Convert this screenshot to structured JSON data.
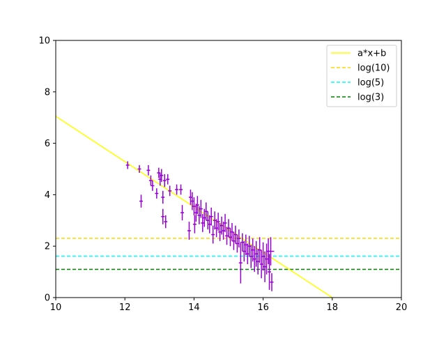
{
  "chart_data": {
    "type": "scatter",
    "title": "",
    "xlabel": "",
    "ylabel": "",
    "xlim": [
      10,
      20
    ],
    "ylim": [
      0,
      10
    ],
    "xticks": [
      "10",
      "12",
      "14",
      "16",
      "18",
      "20"
    ],
    "yticks": [
      "0",
      "2",
      "4",
      "6",
      "8",
      "10"
    ],
    "grid": false,
    "legend_position": "upper right",
    "fit_line": {
      "name": "a*x+b",
      "x": [
        10,
        18
      ],
      "y": [
        7.05,
        0.0
      ],
      "color": "#ffff00"
    },
    "hlines": [
      {
        "name": "log(10)",
        "y": 2.303,
        "color": "#ffd700",
        "style": "dashed"
      },
      {
        "name": "log(5)",
        "y": 1.609,
        "color": "#00ffff",
        "style": "dashed"
      },
      {
        "name": "log(3)",
        "y": 1.099,
        "color": "#008000",
        "style": "dashed"
      }
    ],
    "errorbar_series": {
      "color": "#9400d3",
      "points": [
        [
          12.08,
          5.15,
          0.05,
          0.15
        ],
        [
          12.42,
          5.0,
          0.05,
          0.15
        ],
        [
          12.47,
          3.75,
          0.05,
          0.25
        ],
        [
          12.68,
          4.95,
          0.05,
          0.2
        ],
        [
          12.75,
          4.55,
          0.05,
          0.2
        ],
        [
          12.8,
          4.35,
          0.05,
          0.2
        ],
        [
          12.92,
          4.05,
          0.05,
          0.2
        ],
        [
          12.98,
          4.85,
          0.05,
          0.2
        ],
        [
          13.02,
          4.6,
          0.05,
          0.25
        ],
        [
          13.06,
          4.75,
          0.05,
          0.25
        ],
        [
          13.1,
          3.9,
          0.05,
          0.25
        ],
        [
          13.1,
          3.15,
          0.05,
          0.3
        ],
        [
          13.15,
          4.55,
          0.05,
          0.25
        ],
        [
          13.18,
          2.95,
          0.05,
          0.25
        ],
        [
          13.24,
          4.6,
          0.05,
          0.2
        ],
        [
          13.3,
          4.15,
          0.05,
          0.2
        ],
        [
          13.5,
          4.2,
          0.05,
          0.2
        ],
        [
          13.62,
          4.2,
          0.05,
          0.2
        ],
        [
          13.66,
          3.3,
          0.05,
          0.3
        ],
        [
          13.86,
          2.6,
          0.05,
          0.35
        ],
        [
          13.9,
          3.9,
          0.05,
          0.3
        ],
        [
          13.95,
          3.75,
          0.05,
          0.35
        ],
        [
          14.0,
          3.55,
          0.05,
          0.35
        ],
        [
          14.02,
          2.85,
          0.05,
          0.35
        ],
        [
          14.06,
          3.3,
          0.05,
          0.35
        ],
        [
          14.1,
          3.6,
          0.05,
          0.35
        ],
        [
          14.15,
          3.2,
          0.05,
          0.35
        ],
        [
          14.2,
          3.45,
          0.05,
          0.35
        ],
        [
          14.25,
          2.9,
          0.05,
          0.35
        ],
        [
          14.3,
          3.1,
          0.05,
          0.35
        ],
        [
          14.35,
          3.35,
          0.05,
          0.35
        ],
        [
          14.4,
          3.0,
          0.05,
          0.35
        ],
        [
          14.45,
          2.85,
          0.05,
          0.35
        ],
        [
          14.5,
          3.15,
          0.05,
          0.35
        ],
        [
          14.55,
          2.45,
          0.05,
          0.35
        ],
        [
          14.6,
          3.0,
          0.05,
          0.35
        ],
        [
          14.65,
          2.7,
          0.05,
          0.35
        ],
        [
          14.7,
          2.95,
          0.05,
          0.35
        ],
        [
          14.75,
          2.55,
          0.05,
          0.35
        ],
        [
          14.8,
          2.8,
          0.05,
          0.35
        ],
        [
          14.85,
          2.6,
          0.05,
          0.35
        ],
        [
          14.9,
          2.9,
          0.05,
          0.35
        ],
        [
          14.95,
          2.4,
          0.05,
          0.35
        ],
        [
          15.0,
          2.7,
          0.05,
          0.35
        ],
        [
          15.05,
          2.35,
          0.05,
          0.35
        ],
        [
          15.1,
          2.55,
          0.05,
          0.35
        ],
        [
          15.15,
          2.2,
          0.05,
          0.35
        ],
        [
          15.2,
          2.45,
          0.05,
          0.35
        ],
        [
          15.25,
          2.1,
          0.05,
          0.35
        ],
        [
          15.3,
          2.3,
          0.05,
          0.35
        ],
        [
          15.35,
          1.35,
          0.05,
          0.8
        ],
        [
          15.4,
          2.15,
          0.05,
          0.35
        ],
        [
          15.45,
          1.8,
          0.05,
          0.4
        ],
        [
          15.5,
          2.05,
          0.05,
          0.4
        ],
        [
          15.55,
          1.7,
          0.05,
          0.4
        ],
        [
          15.6,
          2.0,
          0.05,
          0.4
        ],
        [
          15.65,
          1.6,
          0.05,
          0.45
        ],
        [
          15.7,
          1.85,
          0.05,
          0.45
        ],
        [
          15.75,
          1.5,
          0.05,
          0.5
        ],
        [
          15.8,
          1.7,
          0.05,
          0.5
        ],
        [
          15.85,
          1.4,
          0.05,
          0.5
        ],
        [
          15.9,
          1.85,
          0.05,
          0.5
        ],
        [
          15.95,
          1.3,
          0.05,
          0.55
        ],
        [
          16.0,
          1.6,
          0.05,
          0.55
        ],
        [
          16.05,
          1.2,
          0.05,
          0.6
        ],
        [
          16.1,
          1.5,
          0.05,
          0.6
        ],
        [
          16.15,
          1.8,
          0.05,
          0.5
        ],
        [
          16.18,
          1.0,
          0.05,
          0.7
        ],
        [
          16.22,
          1.8,
          0.1,
          0.55
        ],
        [
          16.25,
          0.6,
          0.05,
          0.35
        ]
      ]
    }
  }
}
